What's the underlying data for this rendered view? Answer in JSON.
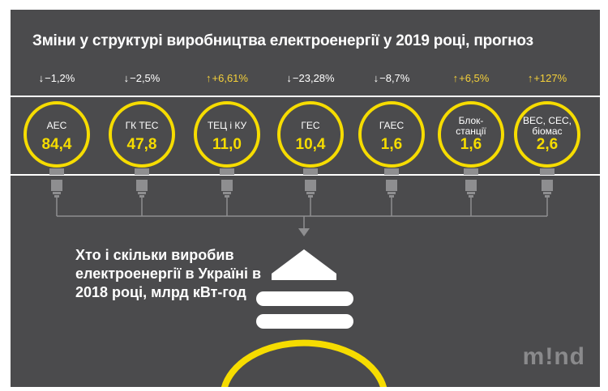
{
  "title": "Зміни у структурі виробництва електроенергії у 2019 році, прогноз",
  "subtitle": "Хто і скільки виробив електроенергії в Україні в 2018 році, млрд кВт-год",
  "logo": "m!nd",
  "colors": {
    "panel": "#4b4b4d",
    "accent": "#f6dc00",
    "text": "#ffffff",
    "positive": "#f4d03a"
  },
  "chart_data": {
    "type": "bar",
    "categories": [
      "АЕС",
      "ГК ТЕС",
      "ТЕЦ і КУ",
      "ГЕС",
      "ГАЕС",
      "Блок-станції",
      "ВЕС, СЕС, біомас"
    ],
    "values": [
      84.4,
      47.8,
      11.0,
      10.4,
      1.6,
      1.6,
      2.6
    ],
    "value_labels": [
      "84,4",
      "47,8",
      "11,0",
      "10,4",
      "1,6",
      "1,6",
      "2,6"
    ],
    "change_2019_forecast": [
      "−1,2%",
      "−2,5%",
      "+6,61%",
      "−23,28%",
      "−8,7%",
      "+6,5%",
      "+127%"
    ],
    "change_direction": [
      "down",
      "down",
      "up",
      "down",
      "down",
      "up",
      "up"
    ]
  },
  "sources": [
    {
      "label": "АЕС",
      "value": "84,4",
      "change": "−1,2%",
      "dir": "down"
    },
    {
      "label": "ГК ТЕС",
      "value": "47,8",
      "change": "−2,5%",
      "dir": "down"
    },
    {
      "label": "ТЕЦ і КУ",
      "value": "11,0",
      "change": "+6,61%",
      "dir": "up"
    },
    {
      "label": "ГЕС",
      "value": "10,4",
      "change": "−23,28%",
      "dir": "down"
    },
    {
      "label": "ГАЕС",
      "value": "1,6",
      "change": "−8,7%",
      "dir": "down"
    },
    {
      "label": "Блок-станції",
      "value": "1,6",
      "change": "+6,5%",
      "dir": "up"
    },
    {
      "label": "ВЕС, СЕС, біомас",
      "value": "2,6",
      "change": "+127%",
      "dir": "up"
    }
  ]
}
